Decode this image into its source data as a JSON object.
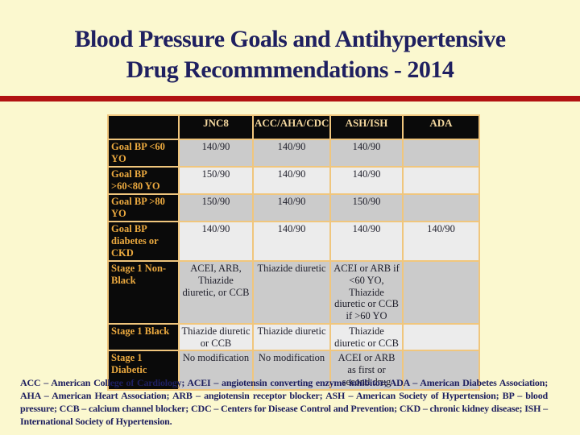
{
  "slide": {
    "title_line1": "Blood Pressure Goals and Antihypertensive",
    "title_line2": "Drug Recommmendations - 2014",
    "footnote": "ACC – American College of Cardiology; ACEI – angiotensin converting enzyme inhibitor; ADA – American Diabetes Association; AHA – American Heart Association; ARB – angiotensin receptor blocker; ASH – American Society of Hypertension; BP – blood pressure; CCB – calcium channel blocker; CDC – Centers for Disease Control and Prevention; CKD – chronic kidney disease; ISH – International Society of Hypertension."
  },
  "colors": {
    "background": "#FBF8CF",
    "title_text": "#1F2060",
    "divider_red": "#B11212",
    "table_border": "#F0C67D",
    "header_cell_bg": "#0A0A0A",
    "header_text": "#F4D89F",
    "row_label_text": "#EBA93F",
    "row_shade_gray": "#CBCBCB",
    "row_shade_light": "#ECECEC",
    "cell_text": "#20202C"
  },
  "table": {
    "columns": [
      "",
      "JNC8",
      "ACC/AHA/CDC",
      "ASH/ISH",
      "ADA"
    ],
    "rows": [
      {
        "label": "Goal BP <60 YO",
        "shade": "gray",
        "cells": [
          "140/90",
          "140/90",
          "140/90",
          ""
        ]
      },
      {
        "label": "Goal BP >60<80 YO",
        "shade": "light",
        "cells": [
          "150/90",
          "140/90",
          "140/90",
          ""
        ]
      },
      {
        "label": "Goal BP >80 YO",
        "shade": "gray",
        "cells": [
          "150/90",
          "140/90",
          "150/90",
          ""
        ]
      },
      {
        "label": "Goal BP diabetes or CKD",
        "shade": "light",
        "cells": [
          "140/90",
          "140/90",
          "140/90",
          "140/90"
        ]
      },
      {
        "label": "Stage 1 Non-Black",
        "shade": "gray",
        "cells": [
          "ACEI, ARB, Thiazide diuretic, or CCB",
          "Thiazide diuretic",
          "ACEI or ARB if <60 YO, Thiazide diuretic or CCB if >60 YO",
          ""
        ]
      },
      {
        "label": "Stage 1 Black",
        "shade": "light",
        "cells": [
          "Thiazide diuretic or CCB",
          "Thiazide diuretic",
          "Thiazide diuretic or CCB",
          ""
        ]
      },
      {
        "label": "Stage 1 Diabetic",
        "shade": "gray",
        "cells": [
          "No modification",
          "No modification",
          "ACEI or ARB as first or second drug",
          ""
        ]
      }
    ]
  }
}
